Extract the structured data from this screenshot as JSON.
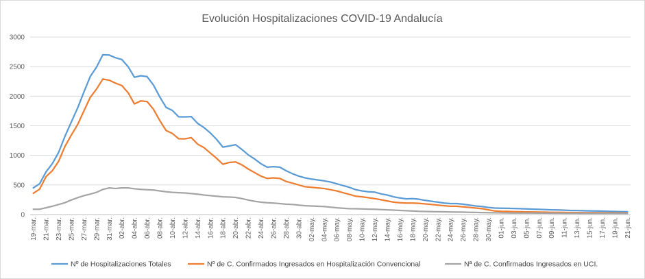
{
  "chart_data": {
    "type": "line",
    "title": "Evolución Hospitalizaciones COVID-19 Andalucía",
    "xlabel": "",
    "ylabel": "",
    "ylim": [
      0,
      3000
    ],
    "yticks": [
      0,
      500,
      1000,
      1500,
      2000,
      2500,
      3000
    ],
    "grid": "horizontal",
    "legend_position": "bottom",
    "x": [
      "19-mar.",
      "20-mar.",
      "21-mar.",
      "22-mar.",
      "23-mar.",
      "24-mar.",
      "25-mar.",
      "26-mar.",
      "27-mar.",
      "28-mar.",
      "29-mar.",
      "30-mar.",
      "31-mar.",
      "01-abr.",
      "02-abr.",
      "03-abr.",
      "04-abr.",
      "05-abr.",
      "06-abr.",
      "07-abr.",
      "08-abr.",
      "09-abr.",
      "10-abr.",
      "11-abr.",
      "12-abr.",
      "13-abr.",
      "14-abr.",
      "15-abr.",
      "16-abr.",
      "17-abr.",
      "18-abr.",
      "19-abr.",
      "20-abr.",
      "21-abr.",
      "22-abr.",
      "23-abr.",
      "24-abr.",
      "25-abr.",
      "26-abr.",
      "27-abr.",
      "28-abr.",
      "29-abr.",
      "30-abr.",
      "01-may.",
      "02-may.",
      "03-may.",
      "04-may.",
      "05-may.",
      "06-may.",
      "07-may.",
      "08-may.",
      "09-may.",
      "10-may.",
      "11-may.",
      "12-may.",
      "13-may.",
      "14-may.",
      "15-may.",
      "16-may.",
      "17-may.",
      "18-may.",
      "19-may.",
      "20-may.",
      "21-may.",
      "22-may.",
      "23-may.",
      "24-may.",
      "25-may.",
      "26-may.",
      "27-may.",
      "28-may.",
      "29-may.",
      "30-may.",
      "31-may.",
      "01-jun.",
      "02-jun.",
      "03-jun.",
      "04-jun.",
      "05-jun.",
      "06-jun.",
      "07-jun.",
      "08-jun.",
      "09-jun.",
      "10-jun.",
      "11-jun.",
      "12-jun.",
      "13-jun.",
      "14-jun.",
      "15-jun.",
      "16-jun.",
      "17-jun.",
      "18-jun.",
      "19-jun.",
      "20-jun.",
      "21-jun."
    ],
    "tick_labels": [
      "19-mar.",
      "21-mar.",
      "23-mar.",
      "25-mar.",
      "27-mar.",
      "29-mar.",
      "31-mar.",
      "02-abr.",
      "04-abr.",
      "06-abr.",
      "08-abr.",
      "10-abr.",
      "12-abr.",
      "14-abr.",
      "16-abr.",
      "18-abr.",
      "20-abr.",
      "22-abr.",
      "24-abr.",
      "26-abr.",
      "28-abr.",
      "30-abr.",
      "02-may.",
      "04-may.",
      "06-may.",
      "08-may.",
      "10-may.",
      "12-may.",
      "14-may.",
      "16-may.",
      "18-may.",
      "20-may.",
      "22-may.",
      "24-may.",
      "26-may.",
      "28-may.",
      "30-may.",
      "01-jun.",
      "03-jun.",
      "05-jun.",
      "07-jun.",
      "09-jun.",
      "11-jun.",
      "13-jun.",
      "15-jun.",
      "17-jun.",
      "19-jun.",
      "21-jun."
    ],
    "series": [
      {
        "name": "Nº de Hospitalizaciones Totales",
        "color": "#5b9bd5",
        "values": [
          450,
          520,
          720,
          860,
          1050,
          1320,
          1560,
          1800,
          2070,
          2330,
          2490,
          2700,
          2695,
          2650,
          2620,
          2500,
          2320,
          2345,
          2330,
          2190,
          1990,
          1810,
          1760,
          1650,
          1650,
          1655,
          1540,
          1470,
          1380,
          1270,
          1140,
          1160,
          1180,
          1100,
          1010,
          940,
          860,
          800,
          810,
          800,
          740,
          690,
          650,
          620,
          600,
          585,
          570,
          550,
          520,
          490,
          460,
          420,
          400,
          385,
          380,
          350,
          330,
          300,
          280,
          265,
          270,
          260,
          240,
          225,
          210,
          195,
          185,
          185,
          175,
          160,
          145,
          135,
          120,
          110,
          108,
          105,
          103,
          100,
          95,
          92,
          88,
          84,
          80,
          78,
          74,
          70,
          68,
          65,
          62,
          60,
          58,
          55,
          52,
          50,
          48
        ]
      },
      {
        "name": "Nº de C. Confirmados Ingresados en Hospitalización Convencional",
        "color": "#ed7d31",
        "values": [
          360,
          430,
          640,
          740,
          900,
          1150,
          1340,
          1520,
          1750,
          1980,
          2120,
          2290,
          2270,
          2220,
          2180,
          2060,
          1870,
          1920,
          1910,
          1780,
          1590,
          1420,
          1370,
          1280,
          1280,
          1300,
          1190,
          1130,
          1040,
          950,
          850,
          880,
          890,
          840,
          770,
          710,
          650,
          610,
          620,
          610,
          560,
          530,
          500,
          470,
          460,
          450,
          440,
          420,
          400,
          370,
          340,
          310,
          300,
          285,
          270,
          250,
          230,
          210,
          200,
          195,
          195,
          190,
          180,
          170,
          160,
          150,
          140,
          140,
          130,
          120,
          110,
          100,
          80,
          60,
          55,
          53,
          50,
          48,
          45,
          43,
          42,
          40,
          38,
          37,
          36,
          35,
          34,
          33,
          32,
          31,
          30,
          30,
          29,
          29,
          28
        ]
      },
      {
        "name": "Nª de C. Confirmados Ingresados en UCI.",
        "color": "#a5a5a5",
        "values": [
          90,
          90,
          115,
          140,
          170,
          200,
          245,
          285,
          320,
          345,
          375,
          425,
          450,
          440,
          450,
          450,
          435,
          425,
          420,
          415,
          400,
          385,
          375,
          370,
          365,
          355,
          345,
          330,
          320,
          310,
          300,
          295,
          290,
          270,
          245,
          225,
          210,
          200,
          195,
          185,
          175,
          170,
          160,
          150,
          145,
          140,
          135,
          125,
          115,
          108,
          100,
          98,
          95,
          92,
          90,
          85,
          80,
          75,
          70,
          65,
          60,
          55,
          52,
          50,
          48,
          46,
          44,
          42,
          40,
          38,
          36,
          34,
          32,
          30,
          29,
          28,
          27,
          26,
          25,
          25,
          24,
          24,
          23,
          23,
          22,
          22,
          22,
          21,
          21,
          21,
          20,
          20,
          20,
          20,
          20
        ]
      }
    ]
  }
}
